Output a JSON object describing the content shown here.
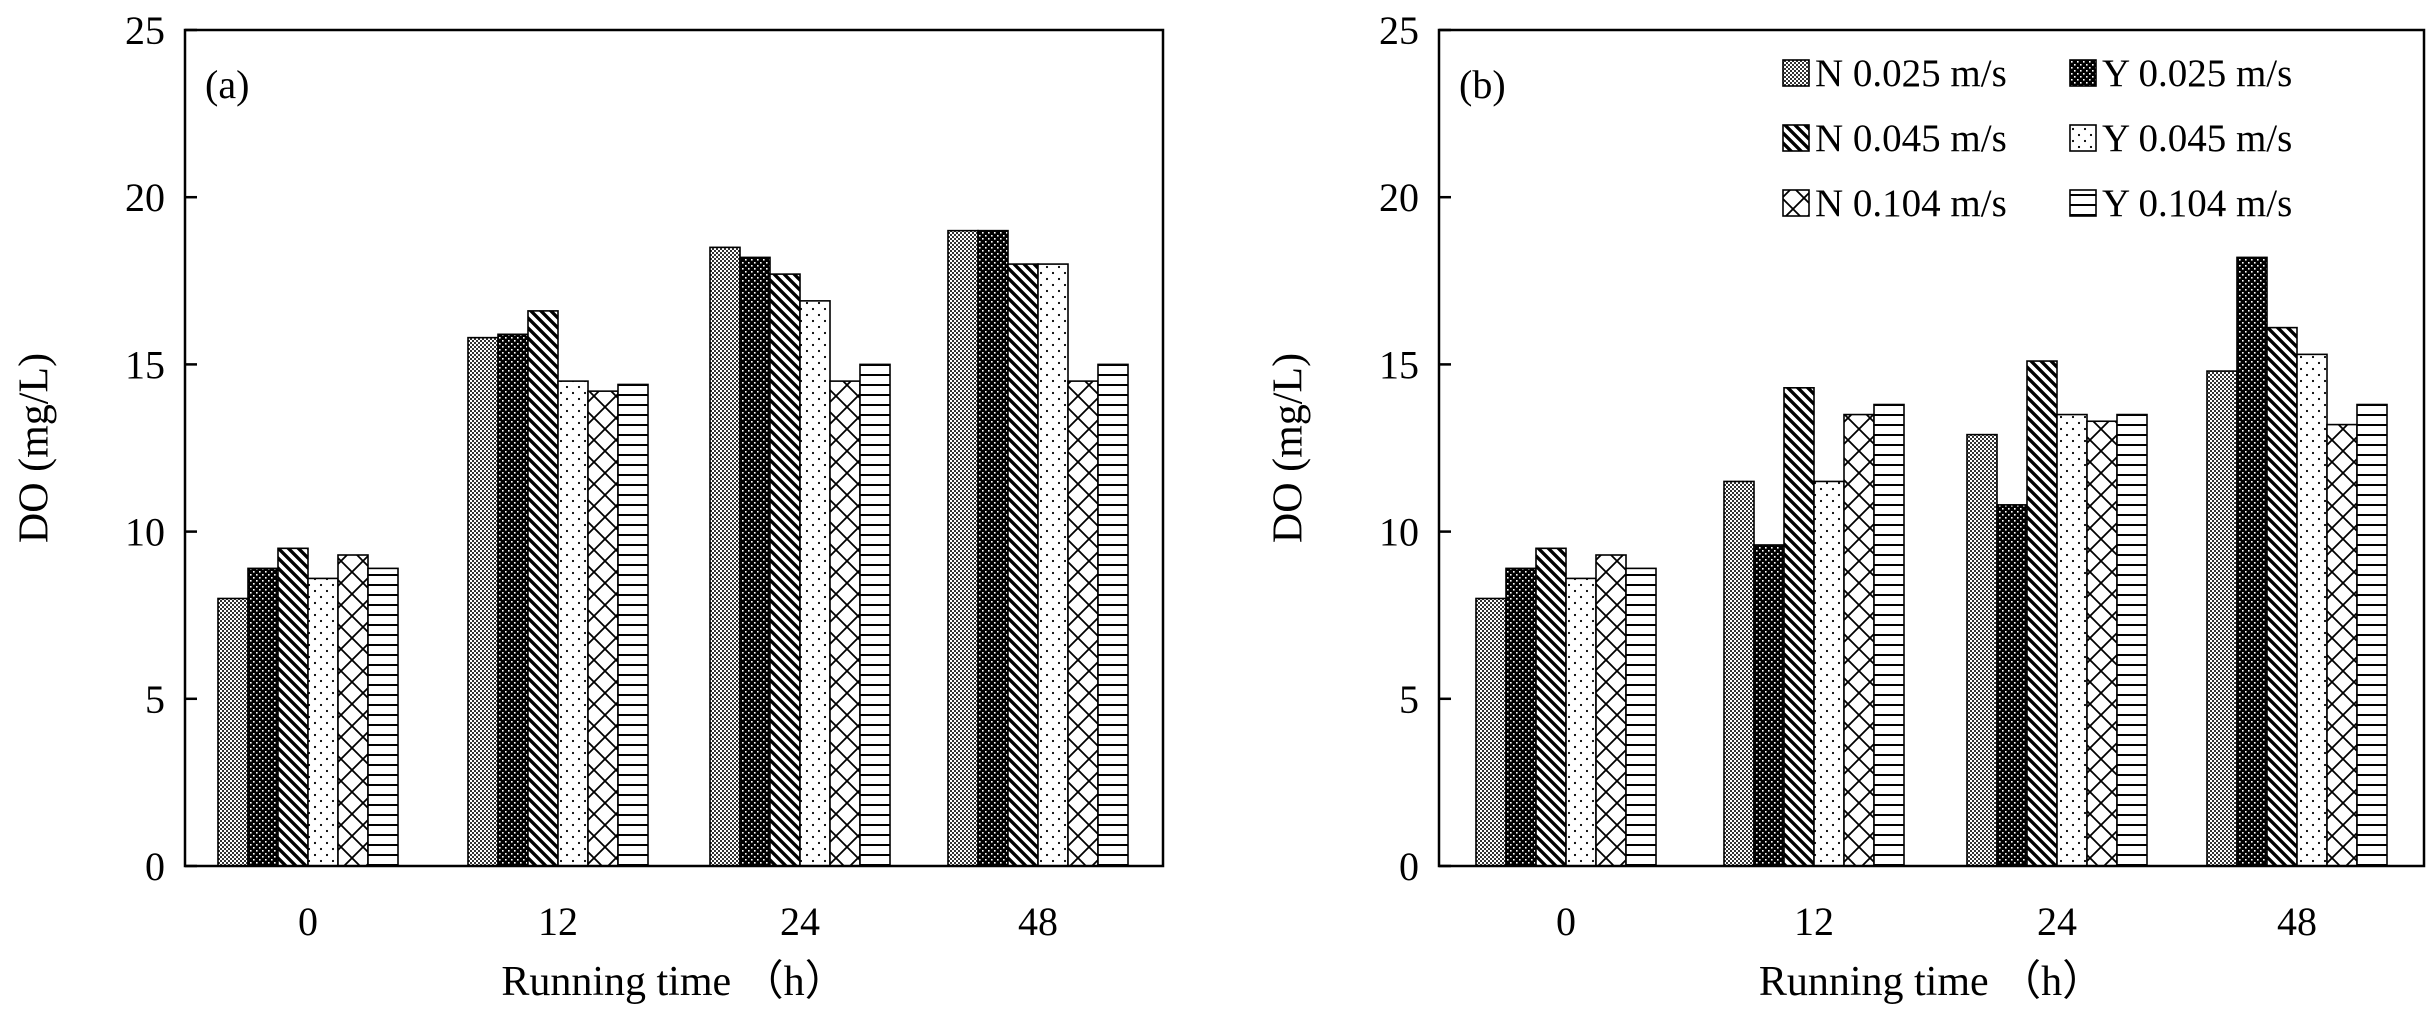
{
  "chart_data": [
    {
      "type": "bar",
      "panel_label": "(a)",
      "categories": [
        "0",
        "12",
        "24",
        "48"
      ],
      "series": [
        {
          "name": "N 0.025 m/s",
          "values": [
            8.0,
            15.8,
            18.5,
            19.0
          ]
        },
        {
          "name": "Y 0.025 m/s",
          "values": [
            8.9,
            15.9,
            18.2,
            19.0
          ]
        },
        {
          "name": "N 0.045 m/s",
          "values": [
            9.5,
            16.6,
            17.7,
            18.0
          ]
        },
        {
          "name": "Y 0.045 m/s",
          "values": [
            8.6,
            14.5,
            16.9,
            18.0
          ]
        },
        {
          "name": "N 0.104 m/s",
          "values": [
            9.3,
            14.2,
            14.5,
            14.5
          ]
        },
        {
          "name": "Y 0.104 m/s",
          "values": [
            8.9,
            14.4,
            15.0,
            15.0
          ]
        }
      ],
      "xlabel": "Running time （h）",
      "ylabel": "DO (mg/L)",
      "ylim": [
        0,
        25
      ],
      "yticks": [
        "0",
        "5",
        "10",
        "15",
        "20",
        "25"
      ],
      "legend": "none"
    },
    {
      "type": "bar",
      "panel_label": "(b)",
      "categories": [
        "0",
        "12",
        "24",
        "48"
      ],
      "series": [
        {
          "name": "N 0.025 m/s",
          "values": [
            8.0,
            11.5,
            12.9,
            14.8
          ]
        },
        {
          "name": "Y 0.025 m/s",
          "values": [
            8.9,
            9.6,
            10.8,
            18.2
          ]
        },
        {
          "name": "N 0.045 m/s",
          "values": [
            9.5,
            14.3,
            15.1,
            16.1
          ]
        },
        {
          "name": "Y 0.045 m/s",
          "values": [
            8.6,
            11.5,
            13.5,
            15.3
          ]
        },
        {
          "name": "N 0.104 m/s",
          "values": [
            9.3,
            13.5,
            13.3,
            13.2
          ]
        },
        {
          "name": "Y 0.104 m/s",
          "values": [
            8.9,
            13.8,
            13.5,
            13.8
          ]
        }
      ],
      "xlabel": "Running time （h）",
      "ylabel": "DO (mg/L)",
      "ylim": [
        0,
        25
      ],
      "yticks": [
        "0",
        "5",
        "10",
        "15",
        "20",
        "25"
      ],
      "legend": "top-right"
    }
  ]
}
